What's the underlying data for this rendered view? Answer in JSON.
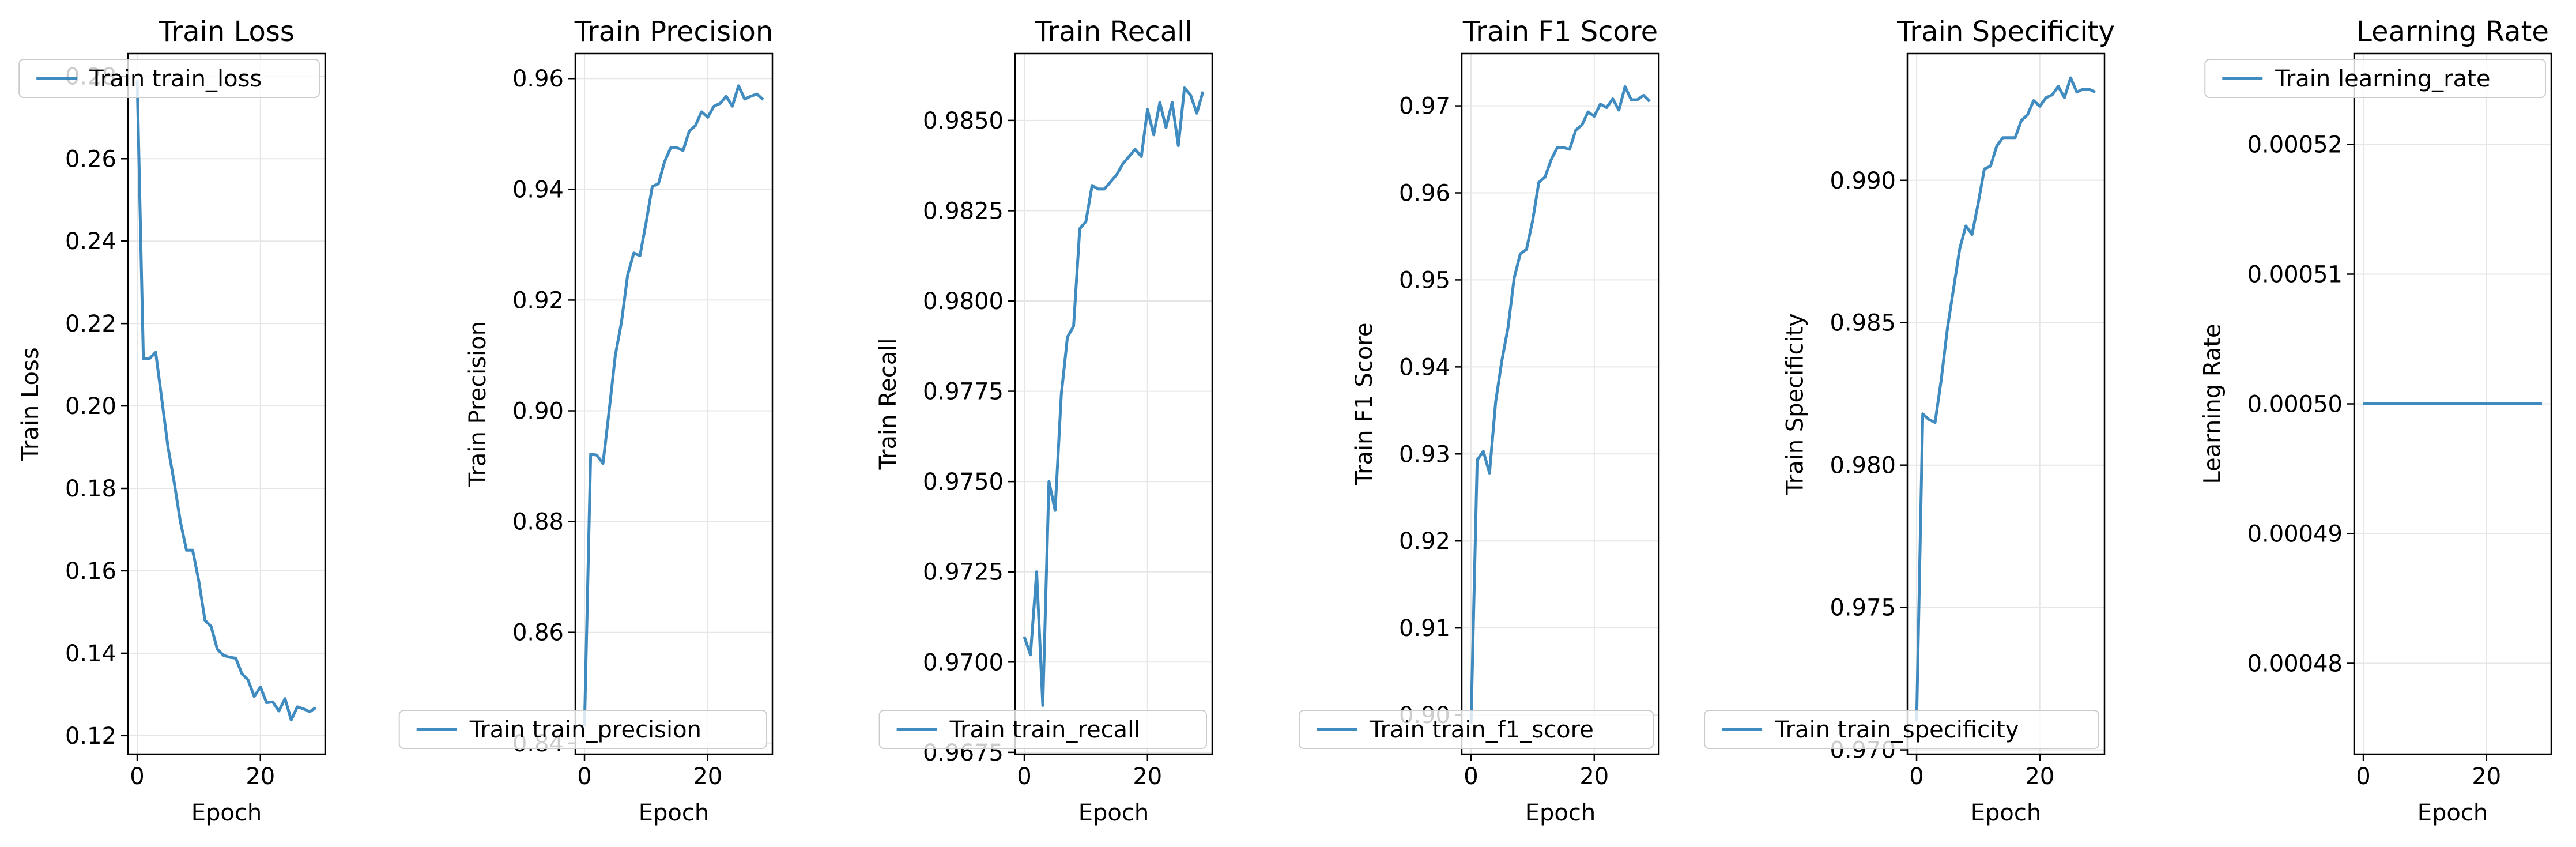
{
  "chart_data": [
    {
      "type": "line",
      "title": "Train Loss",
      "xlabel": "Epoch",
      "ylabel": "Train Loss",
      "xlim": [
        -1.5,
        30.5
      ],
      "ylim": [
        0.1155,
        0.2855
      ],
      "xticks": [
        0,
        20
      ],
      "yticks": [
        0.12,
        0.14,
        0.16,
        0.18,
        0.2,
        0.22,
        0.24,
        0.26,
        0.28
      ],
      "ytick_labels": [
        "0.12",
        "0.14",
        "0.16",
        "0.18",
        "0.20",
        "0.22",
        "0.24",
        "0.26",
        "0.28"
      ],
      "legend_loc": "upper-right",
      "grid": true,
      "series": [
        {
          "name": "Train train_loss",
          "color": "#1f77b4",
          "x": [
            0,
            1,
            2,
            3,
            4,
            5,
            6,
            7,
            8,
            9,
            10,
            11,
            12,
            13,
            14,
            15,
            16,
            17,
            18,
            19,
            20,
            21,
            22,
            23,
            24,
            25,
            26,
            27,
            28,
            29
          ],
          "y": [
            0.279,
            0.2115,
            0.2115,
            0.213,
            0.2015,
            0.19,
            0.1815,
            0.172,
            0.165,
            0.165,
            0.1575,
            0.148,
            0.1465,
            0.141,
            0.1395,
            0.139,
            0.1388,
            0.135,
            0.1335,
            0.1295,
            0.1318,
            0.128,
            0.1282,
            0.126,
            0.129,
            0.1238,
            0.127,
            0.1265,
            0.1258,
            0.1268
          ]
        }
      ]
    },
    {
      "type": "line",
      "title": "Train Precision",
      "xlabel": "Epoch",
      "ylabel": "Train Precision",
      "xlim": [
        -1.5,
        30.5
      ],
      "ylim": [
        0.838,
        0.9645
      ],
      "xticks": [
        0,
        20
      ],
      "yticks": [
        0.84,
        0.86,
        0.88,
        0.9,
        0.92,
        0.94,
        0.96
      ],
      "ytick_labels": [
        "0.84",
        "0.86",
        "0.88",
        "0.90",
        "0.92",
        "0.94",
        "0.96"
      ],
      "legend_loc": "lower-right",
      "grid": true,
      "series": [
        {
          "name": "Train train_precision",
          "color": "#1f77b4",
          "x": [
            0,
            1,
            2,
            3,
            4,
            5,
            6,
            7,
            8,
            9,
            10,
            11,
            12,
            13,
            14,
            15,
            16,
            17,
            18,
            19,
            20,
            21,
            22,
            23,
            24,
            25,
            26,
            27,
            28,
            29
          ],
          "y": [
            0.843,
            0.8922,
            0.892,
            0.8905,
            0.9,
            0.91,
            0.916,
            0.9245,
            0.9285,
            0.928,
            0.934,
            0.9405,
            0.941,
            0.945,
            0.9475,
            0.9475,
            0.947,
            0.9505,
            0.9515,
            0.954,
            0.953,
            0.955,
            0.9555,
            0.9568,
            0.955,
            0.9587,
            0.9563,
            0.9568,
            0.9572,
            0.9562
          ]
        }
      ]
    },
    {
      "type": "line",
      "title": "Train Recall",
      "xlabel": "Epoch",
      "ylabel": "Train Recall",
      "xlim": [
        -1.5,
        30.5
      ],
      "ylim": [
        0.96745,
        0.98685
      ],
      "xticks": [
        0,
        20
      ],
      "yticks": [
        0.9675,
        0.97,
        0.9725,
        0.975,
        0.9775,
        0.98,
        0.9825,
        0.985
      ],
      "ytick_labels": [
        "0.9675",
        "0.9700",
        "0.9725",
        "0.9750",
        "0.9775",
        "0.9800",
        "0.9825",
        "0.9850"
      ],
      "legend_loc": "lower-right",
      "grid": true,
      "series": [
        {
          "name": "Train train_recall",
          "color": "#1f77b4",
          "x": [
            0,
            1,
            2,
            3,
            4,
            5,
            6,
            7,
            8,
            9,
            10,
            11,
            12,
            13,
            14,
            15,
            16,
            17,
            18,
            19,
            20,
            21,
            22,
            23,
            24,
            25,
            26,
            27,
            28,
            29
          ],
          "y": [
            0.9707,
            0.9702,
            0.9725,
            0.9688,
            0.975,
            0.9742,
            0.9774,
            0.979,
            0.9793,
            0.982,
            0.9822,
            0.9832,
            0.9831,
            0.9831,
            0.9833,
            0.9835,
            0.9838,
            0.984,
            0.9842,
            0.984,
            0.9853,
            0.9846,
            0.9855,
            0.9848,
            0.9855,
            0.9843,
            0.9859,
            0.9857,
            0.9852,
            0.9858
          ]
        }
      ]
    },
    {
      "type": "line",
      "title": "Train F1 Score",
      "xlabel": "Epoch",
      "ylabel": "Train F1 Score",
      "xlim": [
        -1.5,
        30.5
      ],
      "ylim": [
        0.8955,
        0.976
      ],
      "xticks": [
        0,
        20
      ],
      "yticks": [
        0.9,
        0.91,
        0.92,
        0.93,
        0.94,
        0.95,
        0.96,
        0.97
      ],
      "ytick_labels": [
        "0.90",
        "0.91",
        "0.92",
        "0.93",
        "0.94",
        "0.95",
        "0.96",
        "0.97"
      ],
      "legend_loc": "lower-right",
      "grid": true,
      "series": [
        {
          "name": "Train train_f1_score",
          "color": "#1f77b4",
          "x": [
            0,
            1,
            2,
            3,
            4,
            5,
            6,
            7,
            8,
            9,
            10,
            11,
            12,
            13,
            14,
            15,
            16,
            17,
            18,
            19,
            20,
            21,
            22,
            23,
            24,
            25,
            26,
            27,
            28,
            29
          ],
          "y": [
            0.899,
            0.9293,
            0.9303,
            0.9278,
            0.936,
            0.9407,
            0.9445,
            0.9502,
            0.953,
            0.9535,
            0.9568,
            0.9612,
            0.9618,
            0.9638,
            0.9652,
            0.9652,
            0.965,
            0.9672,
            0.9678,
            0.9693,
            0.9688,
            0.9702,
            0.9698,
            0.9708,
            0.9695,
            0.9722,
            0.9707,
            0.9707,
            0.9712,
            0.9705
          ]
        }
      ]
    },
    {
      "type": "line",
      "title": "Train Specificity",
      "xlabel": "Epoch",
      "ylabel": "Train Specificity",
      "xlim": [
        -1.5,
        30.5
      ],
      "ylim": [
        0.96985,
        0.99445
      ],
      "xticks": [
        0,
        20
      ],
      "yticks": [
        0.97,
        0.975,
        0.98,
        0.985,
        0.99
      ],
      "ytick_labels": [
        "0.970",
        "0.975",
        "0.980",
        "0.985",
        "0.990"
      ],
      "legend_loc": "lower-right",
      "grid": true,
      "series": [
        {
          "name": "Train train_specificity",
          "color": "#1f77b4",
          "x": [
            0,
            1,
            2,
            3,
            4,
            5,
            6,
            7,
            8,
            9,
            10,
            11,
            12,
            13,
            14,
            15,
            16,
            17,
            18,
            19,
            20,
            21,
            22,
            23,
            24,
            25,
            26,
            27,
            28,
            29
          ],
          "y": [
            0.971,
            0.9818,
            0.9816,
            0.9815,
            0.983,
            0.9848,
            0.9862,
            0.9876,
            0.9884,
            0.9881,
            0.9892,
            0.9904,
            0.9905,
            0.9912,
            0.9915,
            0.9915,
            0.9915,
            0.9921,
            0.9923,
            0.9928,
            0.9926,
            0.9929,
            0.993,
            0.9933,
            0.9929,
            0.9936,
            0.9931,
            0.9932,
            0.9932,
            0.9931
          ]
        }
      ]
    },
    {
      "type": "line",
      "title": "Learning Rate",
      "xlabel": "Epoch",
      "ylabel": "Learning Rate",
      "xlim": [
        -1.5,
        30.5
      ],
      "ylim": [
        0.000473,
        0.000527
      ],
      "xticks": [
        0,
        20
      ],
      "yticks": [
        0.00048,
        0.00049,
        0.0005,
        0.00051,
        0.00052
      ],
      "ytick_labels": [
        "0.00048",
        "0.00049",
        "0.00050",
        "0.00051",
        "0.00052"
      ],
      "legend_loc": "upper-right",
      "grid": true,
      "series": [
        {
          "name": "Train learning_rate",
          "color": "#1f77b4",
          "x": [
            0,
            1,
            2,
            3,
            4,
            5,
            6,
            7,
            8,
            9,
            10,
            11,
            12,
            13,
            14,
            15,
            16,
            17,
            18,
            19,
            20,
            21,
            22,
            23,
            24,
            25,
            26,
            27,
            28,
            29
          ],
          "y": [
            0.0005,
            0.0005,
            0.0005,
            0.0005,
            0.0005,
            0.0005,
            0.0005,
            0.0005,
            0.0005,
            0.0005,
            0.0005,
            0.0005,
            0.0005,
            0.0005,
            0.0005,
            0.0005,
            0.0005,
            0.0005,
            0.0005,
            0.0005,
            0.0005,
            0.0005,
            0.0005,
            0.0005,
            0.0005,
            0.0005,
            0.0005,
            0.0005,
            0.0005,
            0.0005
          ]
        }
      ]
    }
  ]
}
